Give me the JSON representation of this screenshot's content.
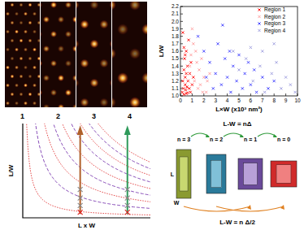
{
  "images": {
    "labels": [
      "1",
      "2",
      "3",
      "4"
    ]
  },
  "chart_data": {
    "type": "scatter",
    "x_label": "L×W (x10³ nm²)",
    "y_label": "L/W",
    "xlim": [
      0,
      10
    ],
    "ylim": [
      1,
      2.2
    ],
    "xticks": [
      0,
      1,
      2,
      3,
      4,
      5,
      6,
      7,
      8,
      9,
      10
    ],
    "yticks": [
      {
        "value": 1,
        "label": "1.0"
      },
      1.1,
      1.2,
      1.3,
      1.4,
      1.5,
      1.6,
      1.7,
      1.8,
      1.9,
      {
        "value": 2,
        "label": "2.0"
      },
      2.1,
      2.2
    ],
    "legend": "upper right",
    "marker": "x",
    "series": [
      {
        "name": "Region 1",
        "color": "#ff0000",
        "x": [
          0.15,
          0.2,
          0.25,
          0.3,
          0.3,
          0.35,
          0.4,
          0.4,
          0.45,
          0.5,
          0.5,
          0.55,
          0.6,
          0.6,
          0.65,
          0.7,
          0.75,
          0.8,
          0.85,
          0.9,
          1.0,
          1.1,
          0.2,
          0.3,
          0.4,
          0.5
        ],
        "values": [
          1.05,
          1.2,
          1.1,
          1.35,
          1.02,
          1.5,
          1.15,
          1.25,
          1.08,
          1.3,
          1.6,
          1.12,
          1.04,
          1.4,
          1.2,
          1.75,
          1.1,
          1.3,
          1.05,
          1.45,
          1.15,
          1.25,
          1.85,
          1.65,
          1.55,
          1.03
        ]
      },
      {
        "name": "Region 2",
        "color": "#ff9999",
        "x": [
          0.8,
          1.0,
          1.2,
          1.3,
          1.5,
          1.6,
          1.8,
          2.0,
          2.2,
          2.5,
          1.1,
          1.4,
          1.7,
          1.9,
          2.3,
          0.9
        ],
        "values": [
          1.4,
          1.9,
          1.2,
          1.6,
          1.1,
          1.35,
          1.5,
          1.25,
          1.05,
          1.3,
          1.7,
          1.45,
          1.15,
          1.05,
          1.2,
          1.55
        ]
      },
      {
        "name": "Region 3",
        "color": "#3333ff",
        "x": [
          1.5,
          2.0,
          2.5,
          3.0,
          3.2,
          3.5,
          3.8,
          4.0,
          4.3,
          4.5,
          4.8,
          5.0,
          5.3,
          5.5,
          6.0,
          6.3,
          6.5,
          7.0,
          7.5,
          8.0,
          2.8,
          3.6,
          4.2,
          5.8,
          2.2
        ],
        "values": [
          1.8,
          1.6,
          1.45,
          1.3,
          1.7,
          1.15,
          1.5,
          1.25,
          1.05,
          1.4,
          1.2,
          1.55,
          1.1,
          1.3,
          1.15,
          1.35,
          1.05,
          1.25,
          1.1,
          1.2,
          1.1,
          1.95,
          1.6,
          1.45,
          1.25
        ]
      },
      {
        "name": "Region 4",
        "color": "#9999dd",
        "x": [
          4.5,
          5.0,
          5.6,
          6.2,
          6.8,
          7.2,
          7.8,
          8.2,
          8.6,
          9.0,
          9.4,
          9.8,
          7.0,
          8.0,
          6.0
        ],
        "values": [
          1.6,
          1.35,
          1.5,
          1.2,
          1.4,
          1.05,
          1.3,
          1.45,
          1.1,
          1.25,
          1.15,
          1.05,
          1.6,
          1.7,
          1.65
        ]
      }
    ]
  },
  "schematic": {
    "x_label": "L x W",
    "y_label": "L/W"
  },
  "diagram": {
    "top_equation": "L-W = nΔ",
    "bottom_equation": "L-W = n Δ/2",
    "length_label": "L",
    "width_label": "W",
    "shapes": [
      "n = 3",
      "n = 2",
      "n = 1",
      "n = 0"
    ]
  }
}
